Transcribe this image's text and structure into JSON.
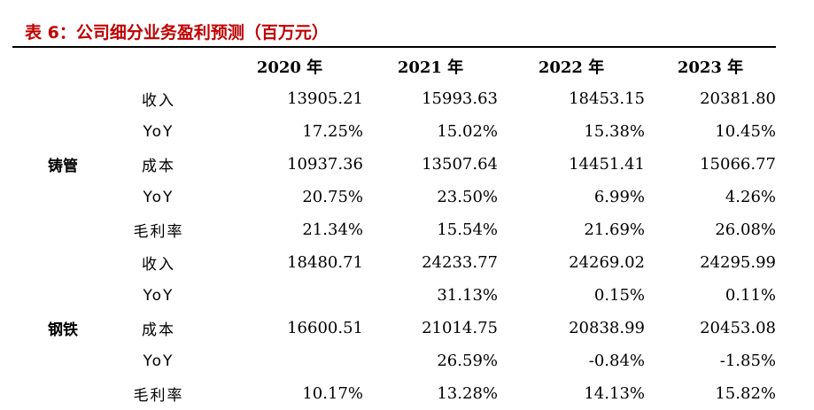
{
  "title": "表 6：公司细分业务盈利预测（百万元）",
  "header": {
    "years": [
      "2020 年",
      "2021 年",
      "2022 年",
      "2023 年"
    ]
  },
  "segments": [
    {
      "name": "铸管",
      "rows": [
        {
          "metric": "收入",
          "values": [
            "13905.21",
            "15993.63",
            "18453.15",
            "20381.80"
          ]
        },
        {
          "metric": "YoY",
          "values": [
            "17.25%",
            "15.02%",
            "15.38%",
            "10.45%"
          ]
        },
        {
          "metric": "成本",
          "values": [
            "10937.36",
            "13507.64",
            "14451.41",
            "15066.77"
          ]
        },
        {
          "metric": "YoY",
          "values": [
            "20.75%",
            "23.50%",
            "6.99%",
            "4.26%"
          ]
        },
        {
          "metric": "毛利率",
          "values": [
            "21.34%",
            "15.54%",
            "21.69%",
            "26.08%"
          ]
        }
      ]
    },
    {
      "name": "钢铁",
      "rows": [
        {
          "metric": "收入",
          "values": [
            "18480.71",
            "24233.77",
            "24269.02",
            "24295.99"
          ]
        },
        {
          "metric": "YoY",
          "values": [
            "",
            "31.13%",
            "0.15%",
            "0.11%"
          ]
        },
        {
          "metric": "成本",
          "values": [
            "16600.51",
            "21014.75",
            "20838.99",
            "20453.08"
          ]
        },
        {
          "metric": "YoY",
          "values": [
            "",
            "26.59%",
            "-0.84%",
            "-1.85%"
          ]
        },
        {
          "metric": "毛利率",
          "values": [
            "10.17%",
            "13.28%",
            "14.13%",
            "15.82%"
          ]
        }
      ]
    }
  ]
}
